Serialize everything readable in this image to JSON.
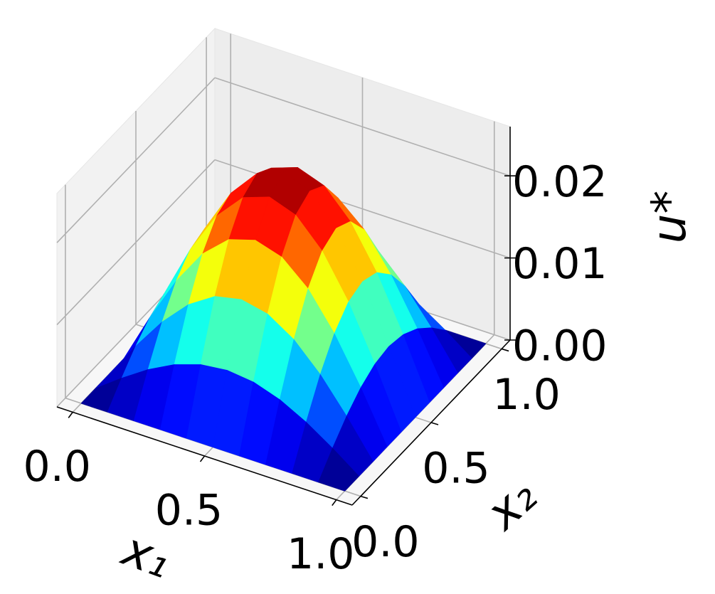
{
  "chart_data": {
    "type": "surface",
    "xlabel": "x₁",
    "ylabel": "x₂",
    "zlabel": "u*",
    "x1": [
      0,
      0.1,
      0.2,
      0.3,
      0.4,
      0.5,
      0.6,
      0.7,
      0.8,
      0.9,
      1
    ],
    "x2": [
      0,
      0.1,
      0.2,
      0.3,
      0.4,
      0.5,
      0.6,
      0.7,
      0.8,
      0.9,
      1
    ],
    "z": [
      [
        0,
        0,
        0,
        0,
        0,
        0,
        0,
        0,
        0,
        0,
        0
      ],
      [
        0,
        0.00234,
        0.00445,
        0.00613,
        0.0072,
        0.00757,
        0.0072,
        0.00613,
        0.00445,
        0.00234,
        0
      ],
      [
        0,
        0.00445,
        0.00846,
        0.01165,
        0.0137,
        0.0144,
        0.0137,
        0.01165,
        0.00846,
        0.00445,
        0
      ],
      [
        0,
        0.00613,
        0.01165,
        0.01604,
        0.01885,
        0.01982,
        0.01885,
        0.01604,
        0.01165,
        0.00613,
        0
      ],
      [
        0,
        0.0072,
        0.0137,
        0.01885,
        0.02216,
        0.0233,
        0.02216,
        0.01885,
        0.0137,
        0.0072,
        0
      ],
      [
        0,
        0.00757,
        0.0144,
        0.01982,
        0.0233,
        0.0245,
        0.0233,
        0.01982,
        0.0144,
        0.00757,
        0
      ],
      [
        0,
        0.0072,
        0.0137,
        0.01885,
        0.02216,
        0.0233,
        0.02216,
        0.01885,
        0.0137,
        0.0072,
        0
      ],
      [
        0,
        0.00613,
        0.01165,
        0.01604,
        0.01885,
        0.01982,
        0.01885,
        0.01604,
        0.01165,
        0.00613,
        0
      ],
      [
        0,
        0.00445,
        0.00846,
        0.01165,
        0.0137,
        0.0144,
        0.0137,
        0.01165,
        0.00846,
        0.00445,
        0
      ],
      [
        0,
        0.00234,
        0.00445,
        0.00613,
        0.0072,
        0.00757,
        0.0072,
        0.00613,
        0.00445,
        0.00234,
        0
      ],
      [
        0,
        0,
        0,
        0,
        0,
        0,
        0,
        0,
        0,
        0,
        0
      ]
    ],
    "colormap": "jet",
    "xlim": [
      -0.06,
      1.06
    ],
    "ylim": [
      -0.06,
      1.06
    ],
    "zlim": [
      0,
      0.026
    ],
    "xticks": [
      {
        "value": 0,
        "label": "0.0"
      },
      {
        "value": 0.5,
        "label": "0.5"
      },
      {
        "value": 1,
        "label": "1.0"
      }
    ],
    "yticks": [
      {
        "value": 0,
        "label": "0.0"
      },
      {
        "value": 0.5,
        "label": "0.5"
      },
      {
        "value": 1,
        "label": "1.0"
      }
    ],
    "zticks": [
      {
        "value": 0,
        "label": "0.00"
      },
      {
        "value": 0.01,
        "label": "0.01"
      },
      {
        "value": 0.02,
        "label": "0.02"
      }
    ],
    "grid": true
  }
}
